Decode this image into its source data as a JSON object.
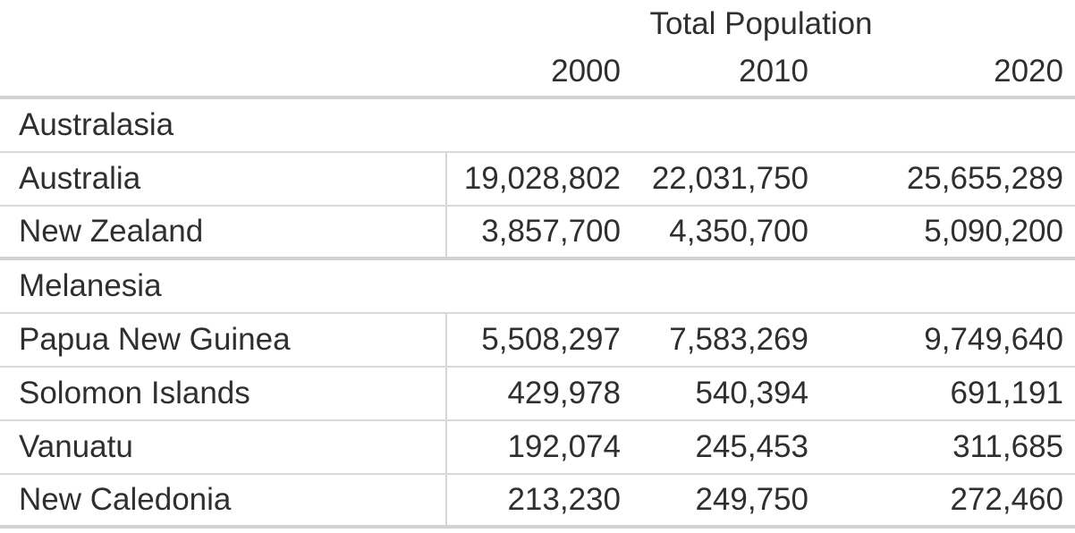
{
  "table": {
    "title": "Total Population",
    "years": [
      "2000",
      "2010",
      "2020"
    ],
    "sections": [
      {
        "region": "Australasia",
        "rows": [
          {
            "name": "Australia",
            "values": [
              "19,028,802",
              "22,031,750",
              "25,655,289"
            ]
          },
          {
            "name": "New Zealand",
            "values": [
              "3,857,700",
              "4,350,700",
              "5,090,200"
            ]
          }
        ]
      },
      {
        "region": "Melanesia",
        "rows": [
          {
            "name": "Papua New Guinea",
            "values": [
              "5,508,297",
              "7,583,269",
              "9,749,640"
            ]
          },
          {
            "name": "Solomon Islands",
            "values": [
              "429,978",
              "540,394",
              "691,191"
            ]
          },
          {
            "name": "Vanuatu",
            "values": [
              "192,074",
              "245,453",
              "311,685"
            ]
          },
          {
            "name": "New Caledonia",
            "values": [
              "213,230",
              "249,750",
              "272,460"
            ]
          }
        ]
      }
    ]
  },
  "colors": {
    "text": "#2f2f2f",
    "thin_rule": "#dadada",
    "thick_rule": "#d2d2d2",
    "column_divider": "#d6d6d6",
    "background": "#ffffff"
  },
  "chart_data": {
    "type": "table",
    "title": "Total Population",
    "columns": [
      "2000",
      "2010",
      "2020"
    ],
    "groups": [
      {
        "label": "Australasia",
        "rows": [
          {
            "label": "Australia",
            "values": [
              19028802,
              22031750,
              25655289
            ]
          },
          {
            "label": "New Zealand",
            "values": [
              3857700,
              4350700,
              5090200
            ]
          }
        ]
      },
      {
        "label": "Melanesia",
        "rows": [
          {
            "label": "Papua New Guinea",
            "values": [
              5508297,
              7583269,
              9749640
            ]
          },
          {
            "label": "Solomon Islands",
            "values": [
              429978,
              540394,
              691191
            ]
          },
          {
            "label": "Vanuatu",
            "values": [
              192074,
              245453,
              311685
            ]
          },
          {
            "label": "New Caledonia",
            "values": [
              213230,
              249750,
              272460
            ]
          }
        ]
      }
    ]
  }
}
